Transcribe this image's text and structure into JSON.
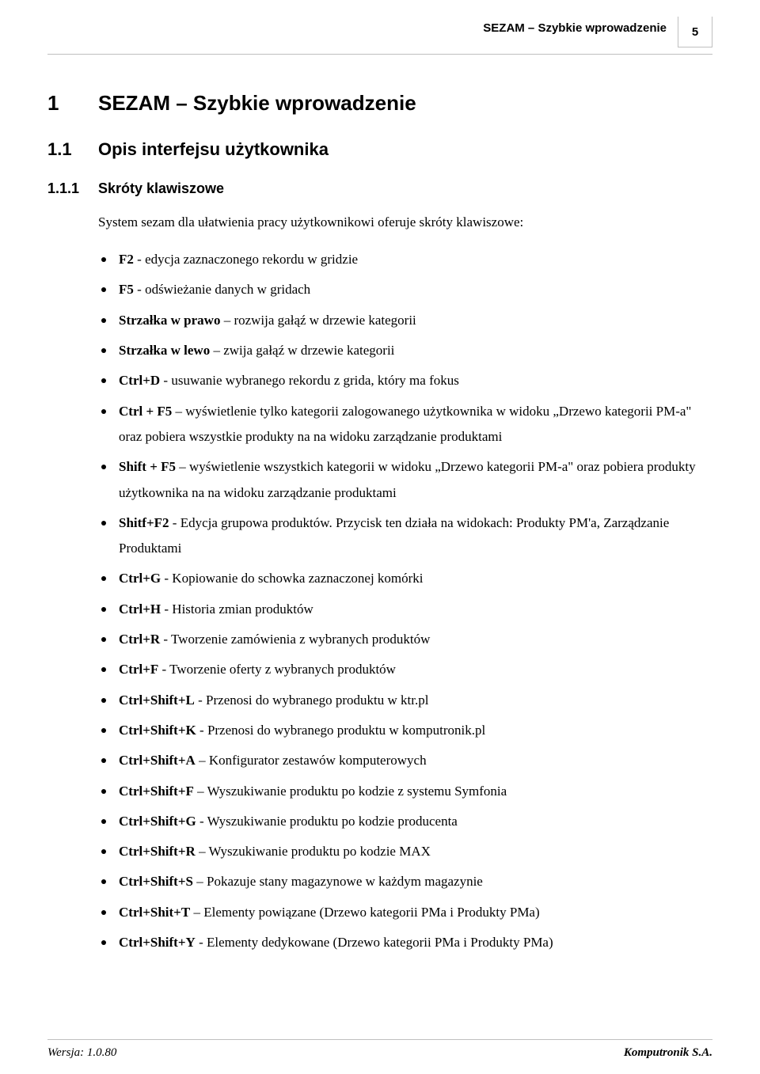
{
  "header": {
    "title": "SEZAM – Szybkie wprowadzenie",
    "page_number": "5"
  },
  "headings": {
    "h1_num": "1",
    "h1_text": "SEZAM – Szybkie wprowadzenie",
    "h2_num": "1.1",
    "h2_text": "Opis interfejsu użytkownika",
    "h3_num": "1.1.1",
    "h3_text": "Skróty klawiszowe"
  },
  "intro": "System sezam dla ułatwienia pracy użytkownikowi oferuje skróty klawiszowe:",
  "shortcuts": [
    {
      "key": "F2",
      "sep": " - ",
      "desc": "edycja zaznaczonego rekordu w gridzie"
    },
    {
      "key": "F5",
      "sep": " - ",
      "desc": "odświeżanie danych w gridach"
    },
    {
      "key": "Strzałka w prawo",
      "sep": " – ",
      "desc": "rozwija gałąź w drzewie kategorii"
    },
    {
      "key": "Strzałka w lewo",
      "sep": " – ",
      "desc": "zwija gałąź w drzewie kategorii"
    },
    {
      "key": "Ctrl+D",
      "sep": " - ",
      "desc": "usuwanie wybranego rekordu z grida, który ma fokus"
    },
    {
      "key": "Ctrl + F5",
      "sep": " – ",
      "desc": "wyświetlenie tylko kategorii zalogowanego użytkownika w widoku „Drzewo kategorii PM-a\" oraz  pobiera wszystkie produkty na na widoku zarządzanie produktami"
    },
    {
      "key": "Shift + F5",
      "sep": " – ",
      "desc": "wyświetlenie wszystkich kategorii w widoku „Drzewo kategorii PM-a\" oraz pobiera produkty użytkownika na na widoku zarządzanie produktami"
    },
    {
      "key": "Shitf+F2",
      "sep": " -  ",
      "desc": "Edycja grupowa produktów. Przycisk ten działa na widokach: Produkty PM'a, Zarządzanie Produktami"
    },
    {
      "key": "Ctrl+G",
      "sep": " - ",
      "desc": "Kopiowanie do schowka zaznaczonej komórki"
    },
    {
      "key": "Ctrl+H",
      "sep": " -  ",
      "desc": "Historia zmian produktów"
    },
    {
      "key": "Ctrl+R",
      "sep": " - ",
      "desc": "Tworzenie zamówienia z wybranych produktów"
    },
    {
      "key": "Ctrl+F",
      "sep": " -  ",
      "desc": "Tworzenie oferty z wybranych produktów"
    },
    {
      "key": "Ctrl+Shift+L",
      "sep": " - ",
      "desc": "Przenosi do wybranego produktu w ktr.pl"
    },
    {
      "key": "Ctrl+Shift+K",
      "sep": " - ",
      "desc": "Przenosi do wybranego produktu w komputronik.pl"
    },
    {
      "key": "Ctrl+Shift+A",
      "sep": " – ",
      "desc": "Konfigurator zestawów komputerowych"
    },
    {
      "key": "Ctrl+Shift+F",
      "sep": " – ",
      "desc": "Wyszukiwanie produktu po kodzie z systemu Symfonia"
    },
    {
      "key": "Ctrl+Shift+G",
      "sep": " - ",
      "desc": "Wyszukiwanie produktu po kodzie producenta"
    },
    {
      "key": "Ctrl+Shift+R",
      "sep": " – ",
      "desc": "Wyszukiwanie produktu po kodzie MAX"
    },
    {
      "key": "Ctrl+Shift+S",
      "sep": " – ",
      "desc": "Pokazuje stany magazynowe w każdym magazynie"
    },
    {
      "key": "Ctrl+Shit+T",
      "sep": " – ",
      "desc": "Elementy powiązane  (Drzewo kategorii PMa i Produkty PMa)"
    },
    {
      "key": "Ctrl+Shift+Y",
      "sep": " - ",
      "desc": "Elementy dedykowane (Drzewo kategorii PMa i Produkty PMa)"
    }
  ],
  "footer": {
    "version": "Wersja: 1.0.80",
    "company": "Komputronik S.A."
  }
}
